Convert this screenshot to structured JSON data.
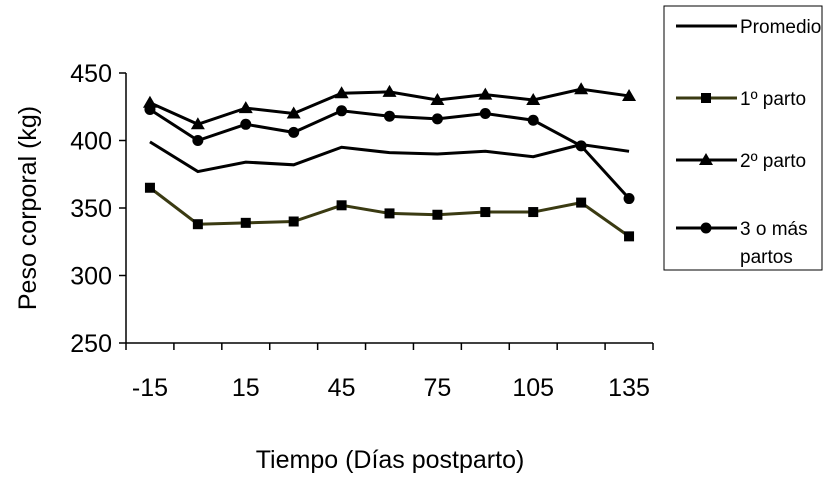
{
  "chart_data": {
    "type": "line",
    "xlabel": "Tiempo (Días postparto)",
    "ylabel": "Peso corporal (kg)",
    "xlim": [
      -22.5,
      142.5
    ],
    "ylim": [
      250,
      450
    ],
    "xticks": [
      -15,
      15,
      45,
      75,
      105,
      135
    ],
    "yticks": [
      250,
      300,
      350,
      400,
      450
    ],
    "x": [
      -15,
      0,
      15,
      30,
      45,
      60,
      75,
      90,
      105,
      120,
      135
    ],
    "legend_position": "top-right",
    "series": [
      {
        "name": "Promedio",
        "color": "#000000",
        "marker": "none",
        "values": [
          399,
          377,
          384,
          382,
          395,
          391,
          390,
          392,
          388,
          397,
          392
        ]
      },
      {
        "name": "1º parto",
        "color": "#3a3a12",
        "marker": "square",
        "values": [
          365,
          338,
          339,
          340,
          352,
          346,
          345,
          347,
          347,
          354,
          329
        ]
      },
      {
        "name": "2º parto",
        "color": "#000000",
        "marker": "triangle",
        "values": [
          428,
          412,
          424,
          420,
          435,
          436,
          430,
          434,
          430,
          438,
          433
        ]
      },
      {
        "name": "3 o más partos",
        "color": "#000000",
        "marker": "circle",
        "values": [
          423,
          400,
          412,
          406,
          422,
          418,
          416,
          420,
          415,
          396,
          357
        ]
      }
    ]
  }
}
